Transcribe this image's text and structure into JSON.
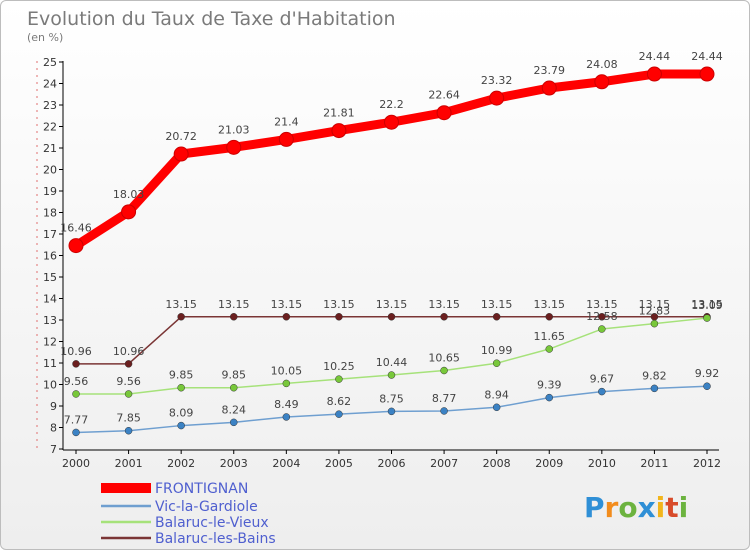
{
  "title": "Evolution du Taux de Taxe d'Habitation",
  "subtitle": "(en %)",
  "logo": {
    "letters": [
      "P",
      "r",
      "o",
      "x",
      "i",
      "t",
      "i"
    ],
    "colors": [
      "#2f8fd6",
      "#f28c1c",
      "#6cb33f",
      "#2f8fd6",
      "#f2b51c",
      "#d84b2a",
      "#6cb33f"
    ]
  },
  "chart_data": {
    "type": "line",
    "x": [
      "2000",
      "2001",
      "2002",
      "2003",
      "2004",
      "2005",
      "2006",
      "2007",
      "2008",
      "2009",
      "2010",
      "2011",
      "2012"
    ],
    "ylim": [
      7,
      25
    ],
    "yticks": [
      "7",
      "8",
      "9",
      "10",
      "11",
      "12",
      "13",
      "14",
      "15",
      "16",
      "17",
      "18",
      "19",
      "20",
      "21",
      "22",
      "23",
      "24",
      "25"
    ],
    "grid": false,
    "legend_position": "bottom-left",
    "series": [
      {
        "name": "FRONTIGNAN",
        "color": "#ff0000",
        "bold": true,
        "values": [
          16.46,
          18.03,
          20.72,
          21.03,
          21.4,
          21.81,
          22.2,
          22.64,
          23.32,
          23.79,
          24.08,
          24.44,
          24.44
        ],
        "labels": [
          "16.46",
          "18.03",
          "20.72",
          "21.03",
          "21.4",
          "21.81",
          "22.2",
          "22.64",
          "23.32",
          "23.79",
          "24.08",
          "24.44",
          "24.44"
        ]
      },
      {
        "name": "Vic-la-Gardiole",
        "color": "#6f9fd0",
        "point_color": "#3b82c4",
        "values": [
          7.77,
          7.85,
          8.09,
          8.24,
          8.49,
          8.62,
          8.75,
          8.77,
          8.94,
          9.39,
          9.67,
          9.82,
          9.92
        ],
        "labels": [
          "7.77",
          "7.85",
          "8.09",
          "8.24",
          "8.49",
          "8.62",
          "8.75",
          "8.77",
          "8.94",
          "9.39",
          "9.67",
          "9.82",
          "9.92"
        ]
      },
      {
        "name": "Balaruc-le-Vieux",
        "color": "#a6e27a",
        "point_color": "#78c83a",
        "values": [
          9.56,
          9.56,
          9.85,
          9.85,
          10.05,
          10.25,
          10.44,
          10.65,
          10.99,
          11.65,
          12.58,
          12.83,
          13.09
        ],
        "labels": [
          "9.56",
          "9.56",
          "9.85",
          "9.85",
          "10.05",
          "10.25",
          "10.44",
          "10.65",
          "10.99",
          "11.65",
          "12.58",
          "12.83",
          "13.09"
        ]
      },
      {
        "name": "Balaruc-les-Bains",
        "color": "#7a3535",
        "point_color": "#6b1f1f",
        "values": [
          10.96,
          10.96,
          13.15,
          13.15,
          13.15,
          13.15,
          13.15,
          13.15,
          13.15,
          13.15,
          13.15,
          13.15,
          13.15
        ],
        "labels": [
          "10.96",
          "10.96",
          "13.15",
          "13.15",
          "13.15",
          "13.15",
          "13.15",
          "13.15",
          "13.15",
          "13.15",
          "13.15",
          "13.15",
          "13.15"
        ]
      }
    ]
  }
}
